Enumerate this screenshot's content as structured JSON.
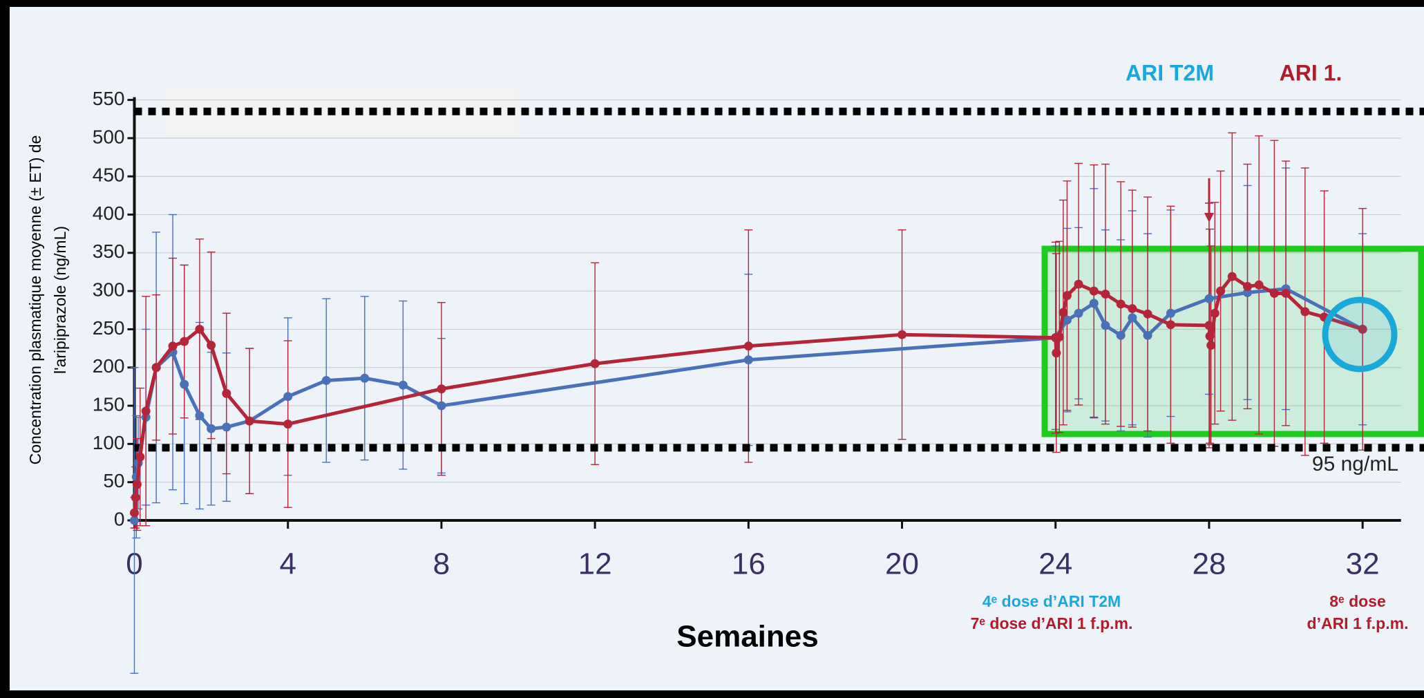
{
  "chart_data": {
    "type": "line",
    "xlabel": "Semaines",
    "ylabel": [
      "Concentration plasmatique moyenne (± ET) de",
      "l'aripiprazole (ng/mL)"
    ],
    "xlim": [
      0,
      33
    ],
    "xticks": [
      0,
      4,
      8,
      12,
      16,
      20,
      24,
      28,
      32
    ],
    "ylim": [
      0,
      550
    ],
    "yticks": [
      0,
      50,
      100,
      150,
      200,
      250,
      300,
      350,
      400,
      450,
      500,
      550
    ],
    "grid": true,
    "reference_lines": [
      535,
      95
    ],
    "annotations": {
      "ref_label": "95 ng/mL",
      "dose24_t2m": "4ᵉ dose d’ARI T2M",
      "dose24_fpm": "7ᵉ dose d’ARI 1 f.p.m.",
      "dose32_a": "8ᵉ dose",
      "dose32_b": "d’ARI 1 f.p.m."
    },
    "series": [
      {
        "name": "ARI T2M",
        "color": "#4a70b8",
        "label_color": "#1aa7df",
        "x": [
          0,
          0.05,
          0.1,
          0.3,
          0.57,
          1,
          1.3,
          1.7,
          2,
          2.4,
          3,
          4,
          5,
          6,
          7,
          8,
          16,
          24,
          24.3,
          24.6,
          25,
          25.3,
          25.7,
          26,
          26.4,
          27,
          28,
          29,
          30,
          32
        ],
        "values": [
          0,
          57,
          75,
          135,
          200,
          220,
          178,
          137,
          120,
          122,
          130,
          162,
          183,
          186,
          177,
          150,
          210,
          239,
          262,
          271,
          284,
          255,
          242,
          265,
          242,
          271,
          290,
          298,
          303,
          250
        ],
        "errors": [
          200,
          80,
          60,
          115,
          177,
          180,
          156,
          122,
          100,
          97,
          95,
          103,
          107,
          107,
          110,
          88,
          112,
          120,
          120,
          112,
          150,
          125,
          125,
          140,
          133,
          135,
          125,
          140,
          158,
          125
        ]
      },
      {
        "name": "ARI 1.",
        "color": "#b5253a",
        "label_color": "#b01c2a",
        "x": [
          0,
          0.03,
          0.07,
          0.15,
          0.3,
          0.57,
          1,
          1.3,
          1.7,
          2,
          2.4,
          3,
          4,
          8,
          12,
          16,
          20,
          24,
          24.02,
          24.1,
          24.2,
          24.3,
          24.6,
          25,
          25.3,
          25.7,
          26,
          26.4,
          27,
          28,
          28.02,
          28.05,
          28.15,
          28.3,
          28.6,
          29,
          29.3,
          29.7,
          30,
          30.5,
          31,
          32
        ],
        "values": [
          10,
          30,
          47,
          83,
          143,
          200,
          228,
          234,
          250,
          229,
          166,
          130,
          126,
          172,
          205,
          228,
          243,
          239,
          219,
          240,
          272,
          294,
          309,
          300,
          296,
          283,
          277,
          270,
          256,
          255,
          241,
          229,
          271,
          300,
          319,
          306,
          308,
          297,
          297,
          273,
          266,
          250
        ],
        "errors": [
          20,
          40,
          60,
          90,
          150,
          95,
          115,
          100,
          118,
          122,
          105,
          95,
          109,
          113,
          132,
          152,
          137,
          125,
          130,
          125,
          147,
          150,
          158,
          165,
          170,
          160,
          155,
          153,
          155,
          160,
          140,
          130,
          145,
          157,
          188,
          160,
          195,
          200,
          173,
          188,
          165,
          158
        ]
      }
    ]
  }
}
